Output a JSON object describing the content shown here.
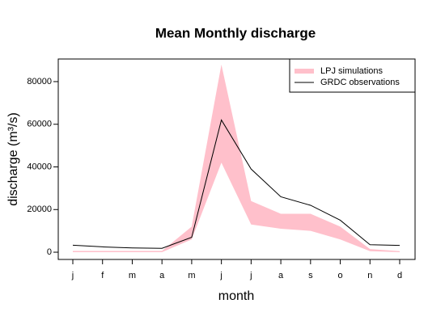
{
  "chart_data": {
    "type": "line",
    "title": "Mean Monthly discharge",
    "x_label": "month",
    "y_label": "discharge (m³/s)",
    "categories": [
      "j",
      "f",
      "m",
      "a",
      "m",
      "j",
      "j",
      "a",
      "s",
      "o",
      "n",
      "d"
    ],
    "ylim": [
      -3400,
      90600
    ],
    "yticks": [
      0,
      20000,
      40000,
      60000,
      80000
    ],
    "grid": false,
    "legend": "topright",
    "series": [
      {
        "name": "LPJ simulations",
        "color": "#ffc0cb",
        "upper": [
          600,
          600,
          600,
          600,
          12000,
          88000,
          24000,
          18000,
          18000,
          12000,
          1500,
          500
        ],
        "lower": [
          0,
          0,
          0,
          0,
          6000,
          42000,
          13000,
          11000,
          10000,
          6000,
          500,
          0
        ]
      },
      {
        "name": "GRDC observations",
        "color": "#000000",
        "values": [
          3300,
          2500,
          2000,
          1800,
          7000,
          62000,
          39000,
          26000,
          22000,
          15000,
          3500,
          3200
        ]
      }
    ]
  }
}
